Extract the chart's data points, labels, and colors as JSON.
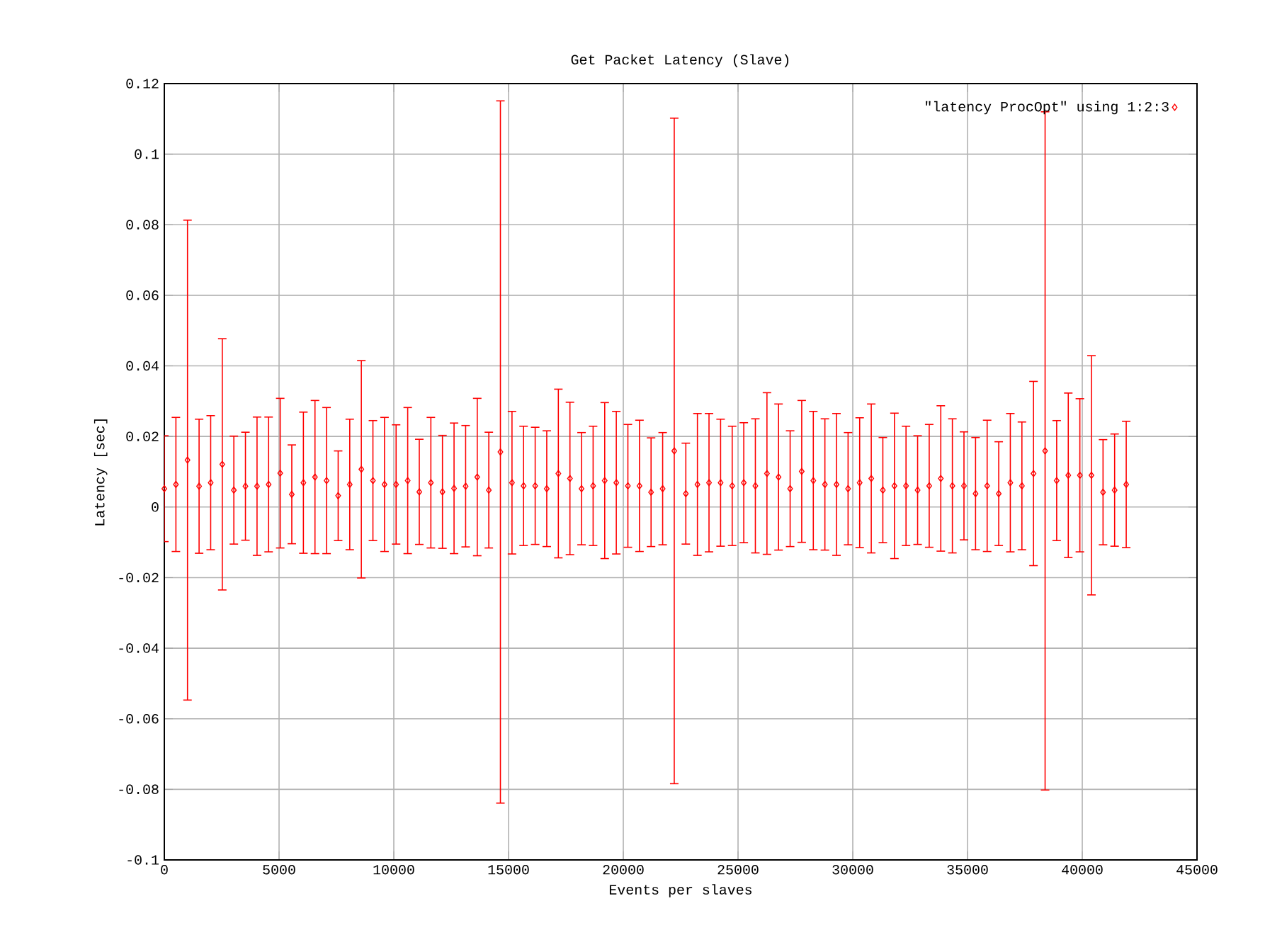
{
  "chart_data": {
    "type": "scatter",
    "title": "Get Packet Latency (Slave)",
    "xlabel": "Events per slaves",
    "ylabel": "Latency [sec]",
    "x": [
      0,
      505,
      1010,
      1515,
      2020,
      2525,
      3030,
      3535,
      4040,
      4545,
      5050,
      5555,
      6060,
      6565,
      7070,
      7575,
      8080,
      8585,
      9090,
      9595,
      10100,
      10605,
      11110,
      11615,
      12120,
      12625,
      13130,
      13635,
      14140,
      14645,
      15150,
      15655,
      16160,
      16665,
      17170,
      17675,
      18180,
      18685,
      19190,
      19695,
      20200,
      20705,
      21210,
      21715,
      22220,
      22725,
      23230,
      23735,
      24240,
      24745,
      25250,
      25755,
      26260,
      26765,
      27270,
      27775,
      28280,
      28785,
      29290,
      29795,
      30300,
      30805,
      31310,
      31815,
      32320,
      32825,
      33330,
      33835,
      34340,
      34845,
      35350,
      35855,
      36360,
      36865,
      37370,
      37875,
      38380,
      38885,
      39390,
      39895,
      40400,
      40905,
      41410,
      41915
    ],
    "series": [
      {
        "name": "\"latency ProcOpt\" using 1:2:3",
        "color": "#ff0000",
        "values": [
          0.0052,
          0.0064,
          0.0133,
          0.0059,
          0.0069,
          0.0121,
          0.0048,
          0.0059,
          0.0059,
          0.0064,
          0.0096,
          0.0036,
          0.0069,
          0.0085,
          0.0075,
          0.0032,
          0.0064,
          0.0107,
          0.0075,
          0.0064,
          0.0064,
          0.0075,
          0.0043,
          0.0069,
          0.0043,
          0.0053,
          0.0059,
          0.0085,
          0.0048,
          0.0156,
          0.0069,
          0.006,
          0.006,
          0.0052,
          0.0095,
          0.0081,
          0.0052,
          0.006,
          0.0075,
          0.0069,
          0.006,
          0.006,
          0.0042,
          0.0052,
          0.0159,
          0.0038,
          0.0064,
          0.0069,
          0.0069,
          0.006,
          0.0069,
          0.006,
          0.0095,
          0.0085,
          0.0052,
          0.0101,
          0.0075,
          0.0064,
          0.0064,
          0.0052,
          0.0069,
          0.0081,
          0.0048,
          0.006,
          0.006,
          0.0048,
          0.006,
          0.0081,
          0.006,
          0.006,
          0.0038,
          0.006,
          0.0038,
          0.0069,
          0.006,
          0.0095,
          0.0159,
          0.0075,
          0.009,
          0.009,
          0.009,
          0.0042,
          0.0048,
          0.0064
        ],
        "errors": [
          0.015,
          0.019,
          0.068,
          0.019,
          0.019,
          0.0356,
          0.0153,
          0.0153,
          0.0196,
          0.0191,
          0.0212,
          0.014,
          0.02,
          0.0217,
          0.0207,
          0.0127,
          0.0185,
          0.0308,
          0.017,
          0.019,
          0.0169,
          0.0207,
          0.0149,
          0.0185,
          0.016,
          0.0185,
          0.0172,
          0.0223,
          0.0164,
          0.0995,
          0.0202,
          0.0169,
          0.0166,
          0.0164,
          0.0239,
          0.0216,
          0.0159,
          0.0169,
          0.0221,
          0.0202,
          0.0174,
          0.0186,
          0.0154,
          0.0159,
          0.0943,
          0.0143,
          0.0201,
          0.0196,
          0.018,
          0.0169,
          0.017,
          0.019,
          0.0229,
          0.0207,
          0.0164,
          0.0201,
          0.0196,
          0.0186,
          0.0201,
          0.0159,
          0.0184,
          0.0211,
          0.0149,
          0.0206,
          0.0169,
          0.0154,
          0.0174,
          0.0206,
          0.019,
          0.0153,
          0.0159,
          0.0186,
          0.0147,
          0.0196,
          0.0181,
          0.0261,
          0.0961,
          0.017,
          0.0233,
          0.0217,
          0.0339,
          0.0149,
          0.0159,
          0.0179
        ]
      }
    ],
    "xlim": [
      0,
      45000
    ],
    "xticks": [
      0,
      5000,
      10000,
      15000,
      20000,
      25000,
      30000,
      35000,
      40000,
      45000
    ],
    "ylim": [
      -0.1,
      0.12
    ],
    "yticks": [
      -0.1,
      -0.08,
      -0.06,
      -0.04,
      -0.02,
      0,
      0.02,
      0.04,
      0.06,
      0.08,
      0.1,
      0.12
    ],
    "grid": true,
    "legend": "top right",
    "marker": "diamond"
  }
}
